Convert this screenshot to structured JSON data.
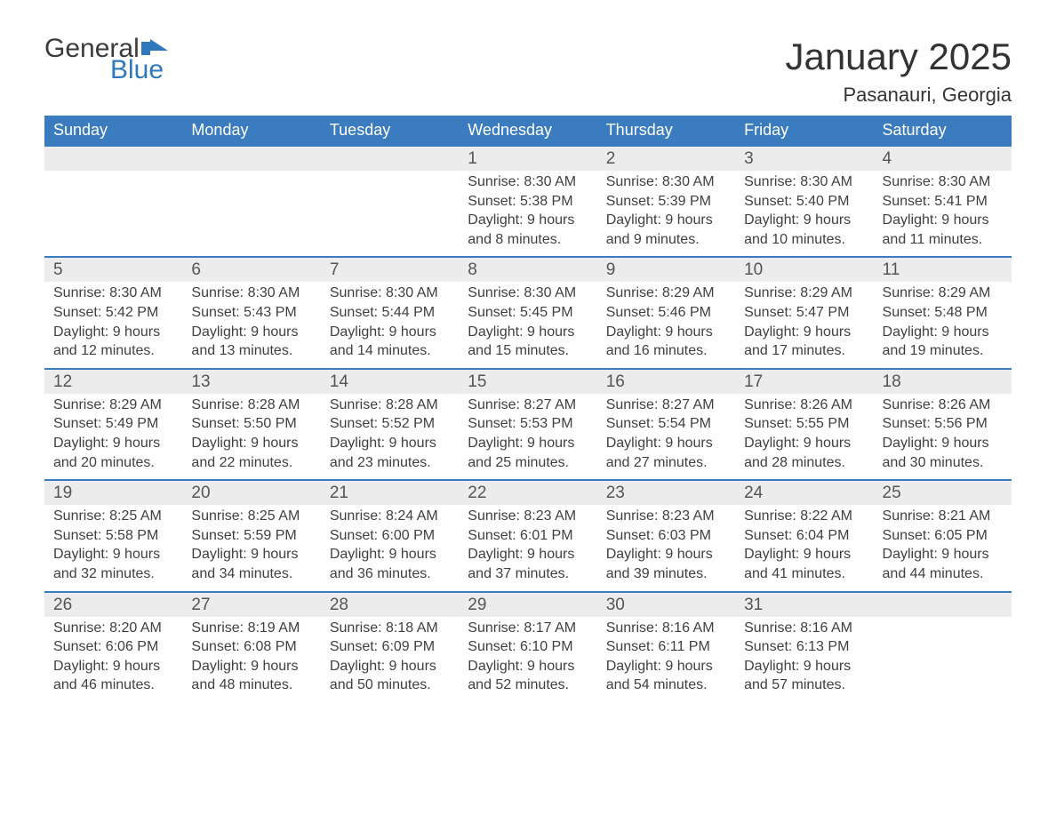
{
  "logo": {
    "general": "General",
    "blue": "Blue"
  },
  "title": "January 2025",
  "location": "Pasanauri, Georgia",
  "colors": {
    "header_bg": "#3b7bbf",
    "header_text": "#ffffff",
    "daynum_bg": "#ececec",
    "body_text": "#404040",
    "logo_blue": "#2f78bd",
    "page_bg": "#ffffff"
  },
  "typography": {
    "title_fontsize": 42,
    "location_fontsize": 22,
    "dayheader_fontsize": 18,
    "daynum_fontsize": 19,
    "body_fontsize": 16
  },
  "day_headers": [
    "Sunday",
    "Monday",
    "Tuesday",
    "Wednesday",
    "Thursday",
    "Friday",
    "Saturday"
  ],
  "weeks": [
    [
      null,
      null,
      null,
      {
        "num": "1",
        "sunrise": "8:30 AM",
        "sunset": "5:38 PM",
        "daylight": "9 hours and 8 minutes."
      },
      {
        "num": "2",
        "sunrise": "8:30 AM",
        "sunset": "5:39 PM",
        "daylight": "9 hours and 9 minutes."
      },
      {
        "num": "3",
        "sunrise": "8:30 AM",
        "sunset": "5:40 PM",
        "daylight": "9 hours and 10 minutes."
      },
      {
        "num": "4",
        "sunrise": "8:30 AM",
        "sunset": "5:41 PM",
        "daylight": "9 hours and 11 minutes."
      }
    ],
    [
      {
        "num": "5",
        "sunrise": "8:30 AM",
        "sunset": "5:42 PM",
        "daylight": "9 hours and 12 minutes."
      },
      {
        "num": "6",
        "sunrise": "8:30 AM",
        "sunset": "5:43 PM",
        "daylight": "9 hours and 13 minutes."
      },
      {
        "num": "7",
        "sunrise": "8:30 AM",
        "sunset": "5:44 PM",
        "daylight": "9 hours and 14 minutes."
      },
      {
        "num": "8",
        "sunrise": "8:30 AM",
        "sunset": "5:45 PM",
        "daylight": "9 hours and 15 minutes."
      },
      {
        "num": "9",
        "sunrise": "8:29 AM",
        "sunset": "5:46 PM",
        "daylight": "9 hours and 16 minutes."
      },
      {
        "num": "10",
        "sunrise": "8:29 AM",
        "sunset": "5:47 PM",
        "daylight": "9 hours and 17 minutes."
      },
      {
        "num": "11",
        "sunrise": "8:29 AM",
        "sunset": "5:48 PM",
        "daylight": "9 hours and 19 minutes."
      }
    ],
    [
      {
        "num": "12",
        "sunrise": "8:29 AM",
        "sunset": "5:49 PM",
        "daylight": "9 hours and 20 minutes."
      },
      {
        "num": "13",
        "sunrise": "8:28 AM",
        "sunset": "5:50 PM",
        "daylight": "9 hours and 22 minutes."
      },
      {
        "num": "14",
        "sunrise": "8:28 AM",
        "sunset": "5:52 PM",
        "daylight": "9 hours and 23 minutes."
      },
      {
        "num": "15",
        "sunrise": "8:27 AM",
        "sunset": "5:53 PM",
        "daylight": "9 hours and 25 minutes."
      },
      {
        "num": "16",
        "sunrise": "8:27 AM",
        "sunset": "5:54 PM",
        "daylight": "9 hours and 27 minutes."
      },
      {
        "num": "17",
        "sunrise": "8:26 AM",
        "sunset": "5:55 PM",
        "daylight": "9 hours and 28 minutes."
      },
      {
        "num": "18",
        "sunrise": "8:26 AM",
        "sunset": "5:56 PM",
        "daylight": "9 hours and 30 minutes."
      }
    ],
    [
      {
        "num": "19",
        "sunrise": "8:25 AM",
        "sunset": "5:58 PM",
        "daylight": "9 hours and 32 minutes."
      },
      {
        "num": "20",
        "sunrise": "8:25 AM",
        "sunset": "5:59 PM",
        "daylight": "9 hours and 34 minutes."
      },
      {
        "num": "21",
        "sunrise": "8:24 AM",
        "sunset": "6:00 PM",
        "daylight": "9 hours and 36 minutes."
      },
      {
        "num": "22",
        "sunrise": "8:23 AM",
        "sunset": "6:01 PM",
        "daylight": "9 hours and 37 minutes."
      },
      {
        "num": "23",
        "sunrise": "8:23 AM",
        "sunset": "6:03 PM",
        "daylight": "9 hours and 39 minutes."
      },
      {
        "num": "24",
        "sunrise": "8:22 AM",
        "sunset": "6:04 PM",
        "daylight": "9 hours and 41 minutes."
      },
      {
        "num": "25",
        "sunrise": "8:21 AM",
        "sunset": "6:05 PM",
        "daylight": "9 hours and 44 minutes."
      }
    ],
    [
      {
        "num": "26",
        "sunrise": "8:20 AM",
        "sunset": "6:06 PM",
        "daylight": "9 hours and 46 minutes."
      },
      {
        "num": "27",
        "sunrise": "8:19 AM",
        "sunset": "6:08 PM",
        "daylight": "9 hours and 48 minutes."
      },
      {
        "num": "28",
        "sunrise": "8:18 AM",
        "sunset": "6:09 PM",
        "daylight": "9 hours and 50 minutes."
      },
      {
        "num": "29",
        "sunrise": "8:17 AM",
        "sunset": "6:10 PM",
        "daylight": "9 hours and 52 minutes."
      },
      {
        "num": "30",
        "sunrise": "8:16 AM",
        "sunset": "6:11 PM",
        "daylight": "9 hours and 54 minutes."
      },
      {
        "num": "31",
        "sunrise": "8:16 AM",
        "sunset": "6:13 PM",
        "daylight": "9 hours and 57 minutes."
      },
      null
    ]
  ],
  "labels": {
    "sunrise": "Sunrise: ",
    "sunset": "Sunset: ",
    "daylight": "Daylight: "
  }
}
